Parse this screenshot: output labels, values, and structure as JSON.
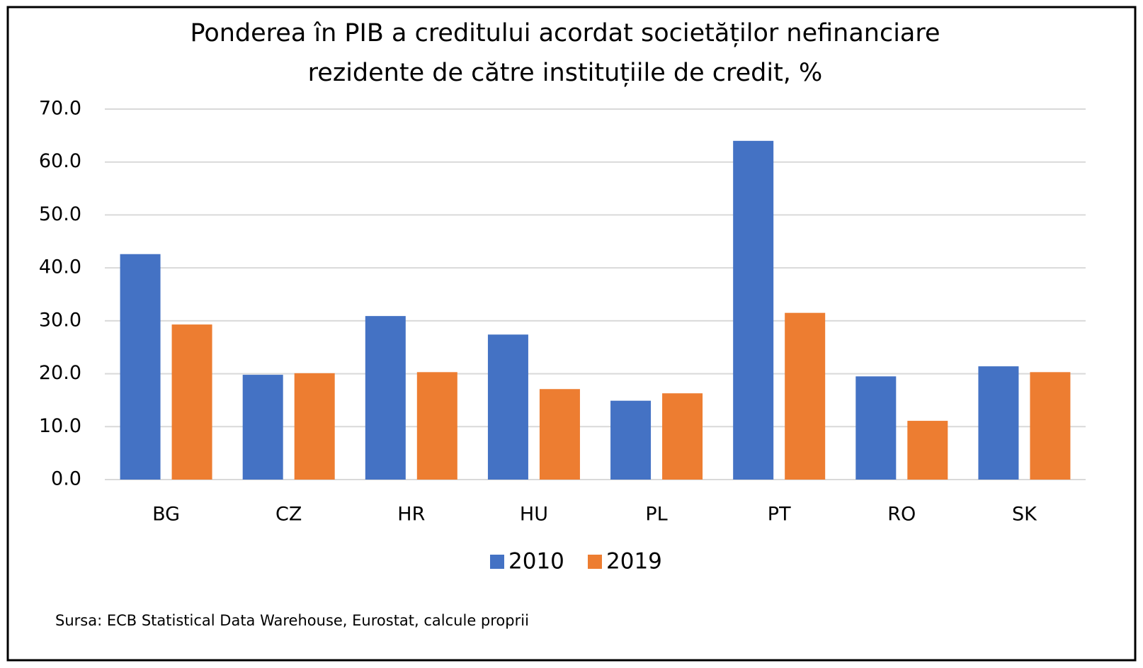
{
  "chart_data": {
    "type": "bar",
    "title": [
      "Ponderea în PIB a creditului acordat societăților nefinanciare",
      "rezidente de către instituțiile de credit, %"
    ],
    "categories": [
      "BG",
      "CZ",
      "HR",
      "HU",
      "PL",
      "PT",
      "RO",
      "SK"
    ],
    "series": [
      {
        "name": "2010",
        "color": "#4472c4",
        "values": [
          42.6,
          19.8,
          30.9,
          27.4,
          14.9,
          64.0,
          19.5,
          21.4
        ]
      },
      {
        "name": "2019",
        "color": "#ed7d31",
        "values": [
          29.3,
          20.1,
          20.3,
          17.1,
          16.3,
          31.5,
          11.1,
          20.3
        ]
      }
    ],
    "ylim": [
      0,
      70
    ],
    "yticks": [
      {
        "value": 0,
        "label": "0.0"
      },
      {
        "value": 10,
        "label": "10.0"
      },
      {
        "value": 20,
        "label": "20.0"
      },
      {
        "value": 30,
        "label": "30.0"
      },
      {
        "value": 40,
        "label": "40.0"
      },
      {
        "value": 50,
        "label": "50.0"
      },
      {
        "value": 60,
        "label": "60.0"
      },
      {
        "value": 70,
        "label": "70.0"
      }
    ],
    "grid": true,
    "legend": "bottom",
    "source": "Sursa: ECB Statistical Data Warehouse, Eurostat, calcule proprii"
  }
}
